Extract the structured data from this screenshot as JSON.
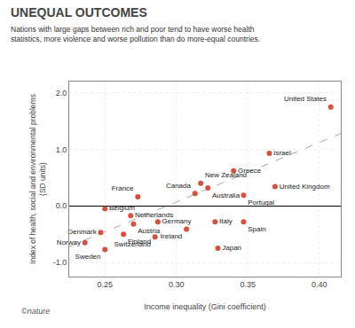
{
  "chart_data": {
    "type": "scatter",
    "title": "UNEQUAL OUTCOMES",
    "subtitle": "Nations with large gaps between rich and poor tend to have worse health\nstatistics, more violence and worse pollution than do more-equal countries.",
    "xlabel": "Income inequality (Gini coefficient)",
    "ylabel": "Index of health, social and environmental problems\n(SD units)",
    "annotations": [
      "©nature"
    ],
    "labels": [
      "United States",
      "Israel",
      "Greece",
      "New Zealand",
      "Australia",
      "United Kingdom",
      "Portugal",
      "Canada",
      "France",
      "Belgium",
      "Netherlands",
      "Austria",
      "Germany",
      "Denmark",
      "Finland",
      "Switzerland",
      "Ireland",
      "Italy",
      "Spain",
      "Norway",
      "Sweden",
      "Japan"
    ],
    "x": [
      0.408,
      0.365,
      0.34,
      0.317,
      0.322,
      0.369,
      0.347,
      0.313,
      0.273,
      0.25,
      0.268,
      0.27,
      0.287,
      0.247,
      0.263,
      0.285,
      0.307,
      0.327,
      0.347,
      0.236,
      0.25,
      0.329
    ],
    "values": [
      1.75,
      0.93,
      0.62,
      0.4,
      0.32,
      0.34,
      0.19,
      0.22,
      0.16,
      -0.05,
      -0.17,
      -0.32,
      -0.28,
      -0.47,
      -0.5,
      -0.55,
      -0.41,
      -0.28,
      -0.28,
      -0.65,
      -0.77,
      -0.75
    ],
    "color": "#d94f3d",
    "marker": "circle",
    "regression": {
      "x": [
        0.225,
        0.415
      ],
      "values": [
        -0.72,
        1.28
      ],
      "color": "#aaaaaa",
      "line_style": "dashed"
    },
    "xlim": [
      0.225,
      0.415
    ],
    "ylim": [
      -1.25,
      2.2
    ],
    "xticks": [
      0.25,
      {
        "value": 0.3,
        "label": "0.30"
      },
      0.35,
      {
        "value": 0.4,
        "label": "0.40"
      }
    ],
    "yticks": [
      {
        "value": -1,
        "label": "-1.0"
      },
      {
        "value": 0,
        "label": "0.0"
      },
      {
        "value": 1,
        "label": "1.0"
      },
      {
        "value": 2,
        "label": "2.0"
      }
    ],
    "grid": true
  }
}
